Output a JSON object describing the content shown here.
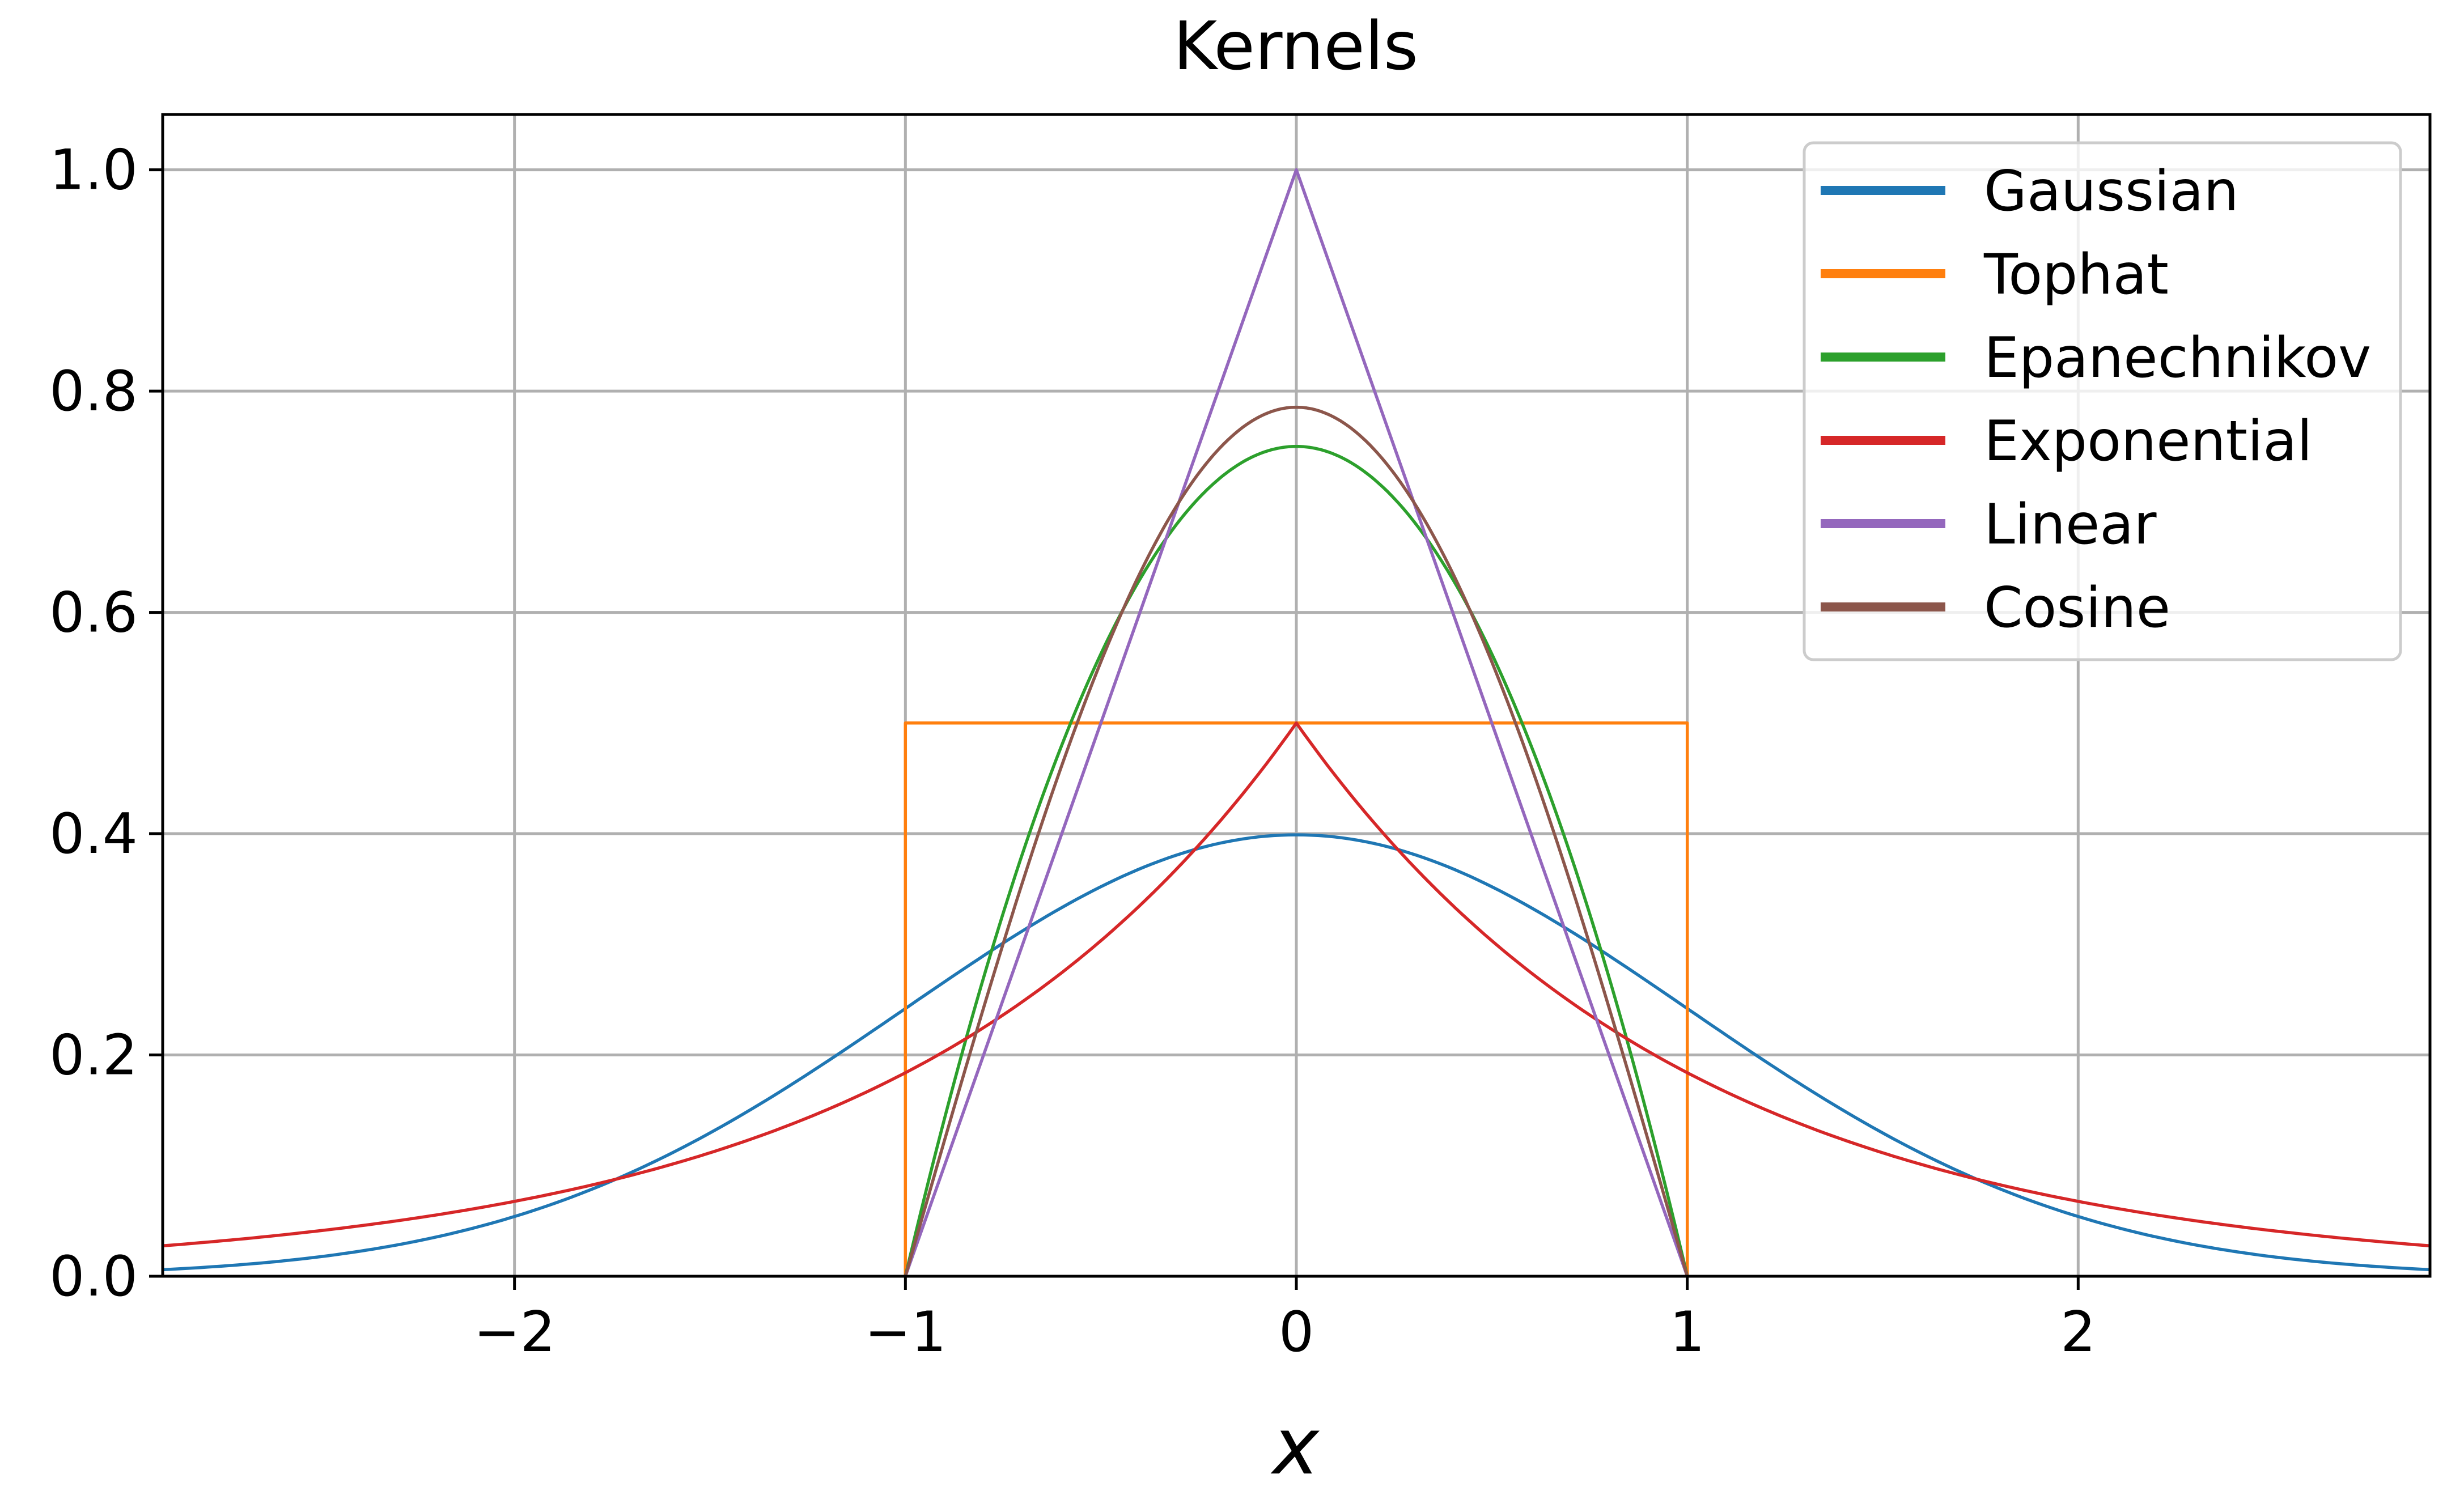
{
  "chart_data": {
    "type": "line",
    "title": "Kernels",
    "xlabel": "x",
    "ylabel": "",
    "xlim": [
      -2.9,
      2.9
    ],
    "ylim": [
      0.0,
      1.05
    ],
    "grid": true,
    "legend_position": "top-right",
    "x_ticks": [
      -2,
      -1,
      0,
      1,
      2
    ],
    "x_tick_labels": [
      "−2",
      "−1",
      "0",
      "1",
      "2"
    ],
    "y_ticks": [
      0.0,
      0.2,
      0.4,
      0.6,
      0.8,
      1.0
    ],
    "y_tick_labels": [
      "0.0",
      "0.2",
      "0.4",
      "0.6",
      "0.8",
      "1.0"
    ],
    "series": [
      {
        "name": "Gaussian",
        "color": "#1f77b4",
        "x": [
          -2.9,
          -2.5,
          -2.0,
          -1.5,
          -1.0,
          -0.75,
          -0.5,
          -0.25,
          0.0,
          0.25,
          0.5,
          0.75,
          1.0,
          1.5,
          2.0,
          2.5,
          2.9
        ],
        "y": [
          0.006,
          0.018,
          0.054,
          0.13,
          0.242,
          0.301,
          0.352,
          0.387,
          0.399,
          0.387,
          0.352,
          0.301,
          0.242,
          0.13,
          0.054,
          0.018,
          0.006
        ]
      },
      {
        "name": "Tophat",
        "color": "#ff7f0e",
        "x": [
          -1.0,
          -1.0,
          1.0,
          1.0
        ],
        "y": [
          0.0,
          0.5,
          0.5,
          0.0
        ]
      },
      {
        "name": "Epanechnikov",
        "color": "#2ca02c",
        "x": [
          -1.0,
          -0.9,
          -0.8,
          -0.6,
          -0.4,
          -0.2,
          0.0,
          0.2,
          0.4,
          0.6,
          0.8,
          0.9,
          1.0
        ],
        "y": [
          0.0,
          0.143,
          0.27,
          0.48,
          0.63,
          0.72,
          0.75,
          0.72,
          0.63,
          0.48,
          0.27,
          0.143,
          0.0
        ]
      },
      {
        "name": "Exponential",
        "color": "#d62728",
        "x": [
          -2.9,
          -2.5,
          -2.0,
          -1.5,
          -1.0,
          -0.75,
          -0.5,
          -0.25,
          0.0,
          0.25,
          0.5,
          0.75,
          1.0,
          1.5,
          2.0,
          2.5,
          2.9
        ],
        "y": [
          0.028,
          0.041,
          0.068,
          0.112,
          0.184,
          0.236,
          0.303,
          0.389,
          0.5,
          0.389,
          0.303,
          0.236,
          0.184,
          0.112,
          0.068,
          0.041,
          0.028
        ]
      },
      {
        "name": "Linear",
        "color": "#9467bd",
        "x": [
          -1.0,
          0.0,
          1.0
        ],
        "y": [
          0.0,
          1.0,
          0.0
        ]
      },
      {
        "name": "Cosine",
        "color": "#8c564b",
        "x": [
          -1.0,
          -0.9,
          -0.8,
          -0.6,
          -0.4,
          -0.2,
          0.0,
          0.2,
          0.4,
          0.6,
          0.8,
          0.9,
          1.0
        ],
        "y": [
          0.0,
          0.123,
          0.243,
          0.462,
          0.635,
          0.747,
          0.785,
          0.747,
          0.635,
          0.462,
          0.243,
          0.123,
          0.0
        ]
      }
    ]
  }
}
